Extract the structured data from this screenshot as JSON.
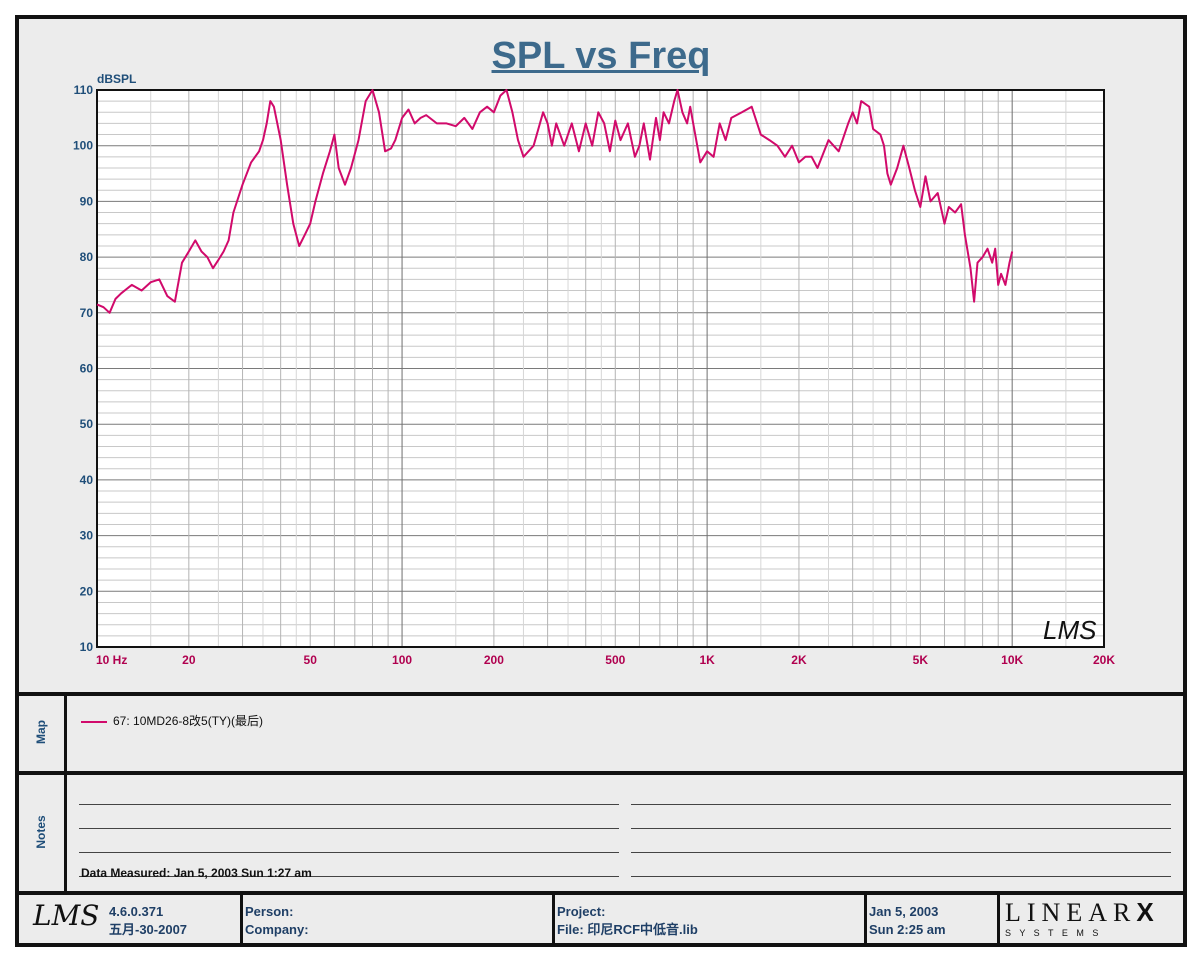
{
  "chart_data": {
    "type": "line",
    "title": "SPL vs Freq",
    "ylabel": "dBSPL",
    "x_scale": "log",
    "xlim": [
      10,
      20000
    ],
    "ylim": [
      10,
      110
    ],
    "y_ticks": [
      10,
      20,
      30,
      40,
      50,
      60,
      70,
      80,
      90,
      100,
      110
    ],
    "x_tick_labels": [
      {
        "value": 10,
        "label": "10  Hz"
      },
      {
        "value": 20,
        "label": "20"
      },
      {
        "value": 50,
        "label": "50"
      },
      {
        "value": 100,
        "label": "100"
      },
      {
        "value": 200,
        "label": "200"
      },
      {
        "value": 500,
        "label": "500"
      },
      {
        "value": 1000,
        "label": "1K"
      },
      {
        "value": 2000,
        "label": "2K"
      },
      {
        "value": 5000,
        "label": "5K"
      },
      {
        "value": 10000,
        "label": "10K"
      },
      {
        "value": 20000,
        "label": "20K"
      }
    ],
    "grid": true,
    "watermark": "LMS",
    "series": [
      {
        "name": "67: 10MD26-8改5(TY)(最后)",
        "color": "#d10a6b",
        "x": [
          10,
          10.5,
          11,
          11.5,
          12,
          13,
          14,
          15,
          16,
          17,
          17.5,
          18,
          19,
          20,
          21,
          22,
          23,
          24,
          25,
          26,
          27,
          28,
          30,
          32,
          34,
          35,
          36,
          37,
          38,
          40,
          42,
          44,
          46,
          48,
          50,
          52,
          55,
          58,
          60,
          62,
          65,
          68,
          72,
          76,
          80,
          84,
          88,
          92,
          95,
          100,
          105,
          110,
          115,
          120,
          130,
          140,
          150,
          160,
          170,
          180,
          190,
          200,
          210,
          220,
          230,
          240,
          250,
          270,
          290,
          300,
          310,
          320,
          340,
          360,
          380,
          400,
          420,
          440,
          460,
          480,
          500,
          520,
          550,
          580,
          600,
          620,
          650,
          680,
          700,
          720,
          750,
          780,
          800,
          830,
          860,
          880,
          900,
          950,
          1000,
          1050,
          1100,
          1150,
          1200,
          1300,
          1400,
          1500,
          1600,
          1700,
          1800,
          1900,
          2000,
          2100,
          2200,
          2300,
          2500,
          2700,
          2900,
          3000,
          3100,
          3200,
          3400,
          3500,
          3700,
          3800,
          3900,
          4000,
          4200,
          4400,
          4600,
          4800,
          5000,
          5200,
          5400,
          5700,
          6000,
          6200,
          6500,
          6800,
          7000,
          7300,
          7500,
          7700,
          8000,
          8300,
          8600,
          8800,
          9000,
          9200,
          9500,
          9800,
          10000
        ],
        "y": [
          71.5,
          71,
          70,
          72.5,
          73.5,
          75,
          74,
          75.5,
          76,
          73,
          72.5,
          72,
          79,
          81,
          83,
          81,
          80,
          78,
          79.5,
          81,
          83,
          88,
          93,
          97,
          99,
          101,
          104,
          108,
          107,
          101,
          93,
          86,
          82,
          84,
          86,
          90,
          95,
          99,
          102,
          96,
          93,
          96,
          101,
          108,
          110,
          106,
          99,
          99.5,
          101,
          105,
          106.5,
          104,
          105,
          105.5,
          104,
          104,
          103.5,
          105,
          103,
          106,
          107,
          106,
          109,
          110,
          106,
          101,
          98,
          100,
          106,
          104,
          100,
          104,
          100,
          104,
          99,
          104,
          100,
          106,
          104,
          99,
          104.5,
          101,
          104,
          98,
          100,
          104,
          97.5,
          105,
          101,
          106,
          104,
          108,
          110,
          106,
          104,
          107,
          104,
          97,
          99,
          98,
          104,
          101,
          105,
          106,
          107,
          102,
          101,
          100,
          98,
          100,
          97,
          98,
          98,
          96,
          101,
          99,
          104,
          106,
          104,
          108,
          107,
          103,
          102,
          100,
          95,
          93,
          96,
          100,
          96,
          92,
          89,
          94.5,
          90,
          91.5,
          86,
          89,
          88,
          89.5,
          84,
          78,
          72,
          79,
          80,
          81.5,
          79,
          81.5,
          75,
          77,
          75,
          79,
          81
        ]
      }
    ]
  },
  "panels": {
    "map_label": "Map",
    "notes_label": "Notes",
    "data_measured": "Data Measured: Jan  5, 2003  Sun  1:27 am"
  },
  "footer": {
    "logo": "LMS",
    "version": "4.6.0.371",
    "build_date": "五月-30-2007",
    "person_label": "Person:",
    "company_label": "Company:",
    "project_label": "Project:",
    "file_label": "File: 印尼RCF中低音.lib",
    "date": "Jan  5, 2003",
    "time": "Sun  2:25 am",
    "brand_top": "LINEAR",
    "brand_x": "X",
    "brand_bottom": "S Y S T E M S"
  },
  "colors": {
    "curve": "#d10a6b",
    "axis_labels": "#1f4e79",
    "x_labels": "#b0004f",
    "title": "#3d6a8c"
  }
}
